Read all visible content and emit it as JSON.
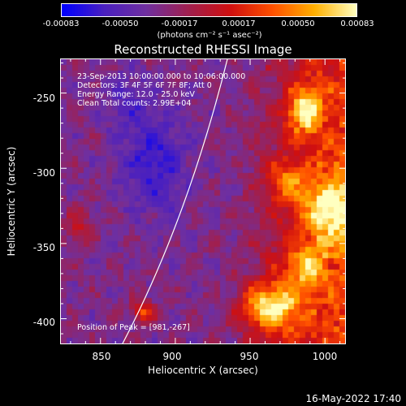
{
  "colorbar": {
    "ticks": [
      "-0.00083",
      "-0.00050",
      "-0.00017",
      "0.00017",
      "0.00050",
      "0.00083"
    ],
    "unit_label": "(photons cm⁻² s⁻¹ asec⁻²)"
  },
  "plot": {
    "title": "Reconstructed RHESSI Image",
    "info_lines": [
      "23-Sep-2013 10:00:00.000 to 10:06:00.000",
      "Detectors: 3F 4F 5F 6F 7F 8F; Att 0",
      "Energy Range: 12.0 - 25.0 keV",
      "Clean    Total counts: 2.99E+04"
    ],
    "peak_label": "Position of Peak = [981,-267]"
  },
  "chart_data": {
    "type": "heatmap",
    "title": "Reconstructed RHESSI Image",
    "xlabel": "Heliocentric X (arcsec)",
    "ylabel": "Heliocentric Y (arcsec)",
    "xlim": [
      823,
      1014
    ],
    "ylim": [
      -417,
      -227
    ],
    "xticks": [
      "850",
      "900",
      "950",
      "1000"
    ],
    "yticks": [
      "-250",
      "-300",
      "-350",
      "-400"
    ],
    "color_range": [
      -0.00083,
      0.00083
    ],
    "colormap": [
      "#0000ff",
      "#4a20c0",
      "#7030a0",
      "#a02050",
      "#d01010",
      "#ff5000",
      "#ffb000",
      "#ffffc0"
    ],
    "peak_position": [
      981,
      -267
    ]
  },
  "footer": {
    "datestamp": "16-May-2022 17:40"
  }
}
